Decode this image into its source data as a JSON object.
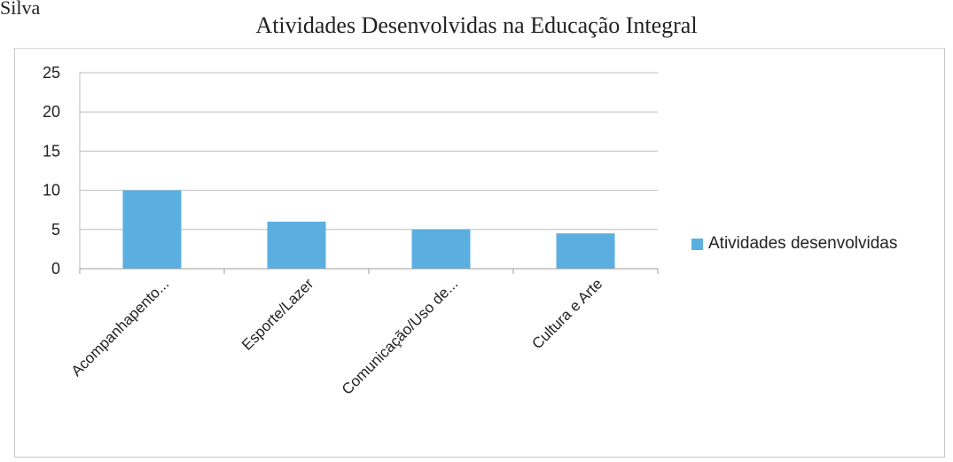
{
  "page": {
    "header_text": "Silva"
  },
  "chart_data": {
    "type": "bar",
    "title": "Atividades Desenvolvidas na Educação Integral",
    "categories": [
      "Acompanhapento...",
      "Esporte/Lazer",
      "Comunicação/Uso de...",
      "Cultura e Arte"
    ],
    "series": [
      {
        "name": "Atividades desenvolvidas",
        "values": [
          10,
          6,
          5,
          4.5
        ],
        "color": "#5aafe0"
      }
    ],
    "xlabel": "",
    "ylabel": "",
    "ylim": [
      0,
      25
    ],
    "yticks": [
      "0",
      "5",
      "10",
      "15",
      "20",
      "25"
    ],
    "grid": true,
    "legend_position": "right"
  }
}
